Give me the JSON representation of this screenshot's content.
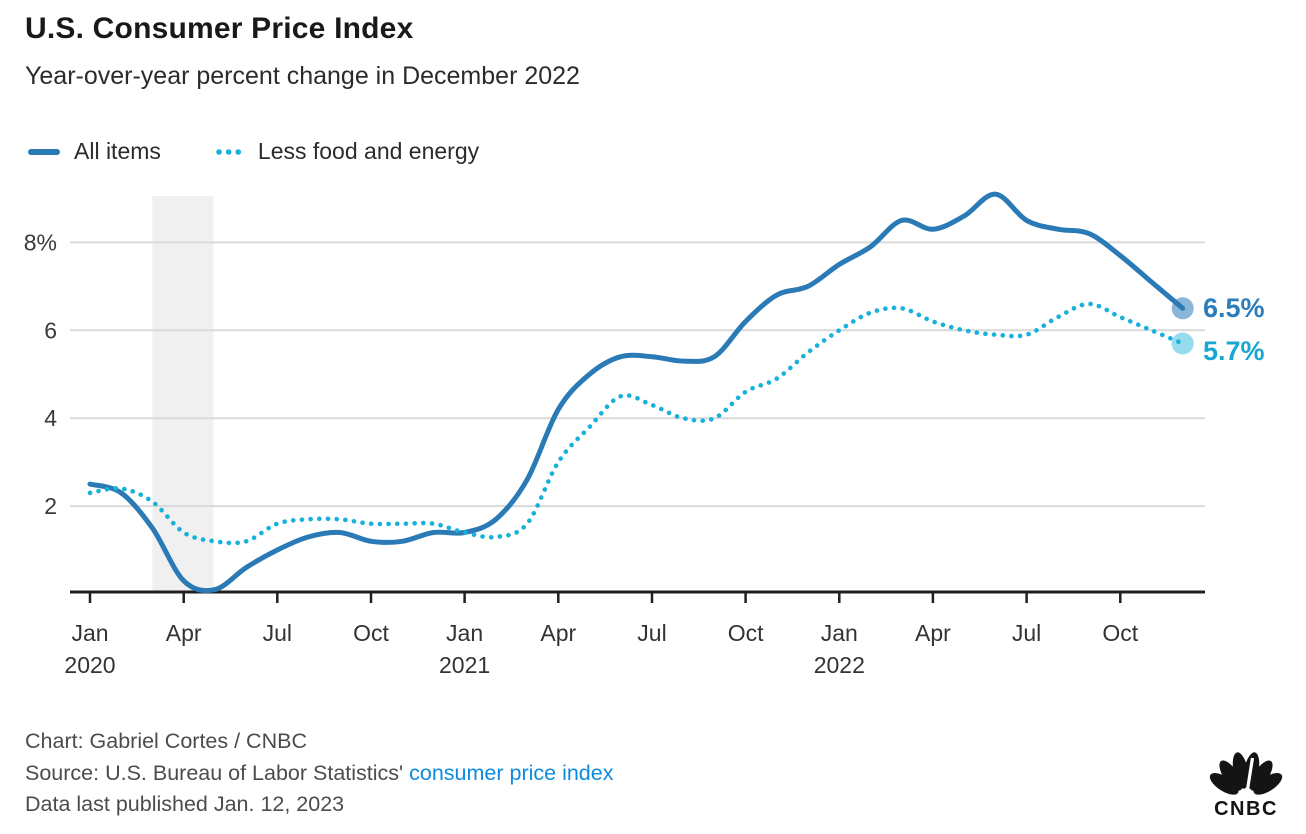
{
  "header": {
    "title": "U.S. Consumer Price Index",
    "subtitle": "Year-over-year percent change in December 2022"
  },
  "legend": [
    {
      "label": "All items",
      "style": "solid",
      "color": "#2a7ab6"
    },
    {
      "label": "Less food and energy",
      "style": "dotted",
      "color": "#16b2da"
    }
  ],
  "chart_data": {
    "type": "line",
    "title": "U.S. Consumer Price Index",
    "subtitle": "Year-over-year percent change in December 2022",
    "ylabel": "percent change year-over-year",
    "ylim": [
      0,
      9.05
    ],
    "grid": true,
    "legend_position": "top-left",
    "months": [
      "Jan 2020",
      "Feb 2020",
      "Mar 2020",
      "Apr 2020",
      "May 2020",
      "Jun 2020",
      "Jul 2020",
      "Aug 2020",
      "Sep 2020",
      "Oct 2020",
      "Nov 2020",
      "Dec 2020",
      "Jan 2021",
      "Feb 2021",
      "Mar 2021",
      "Apr 2021",
      "May 2021",
      "Jun 2021",
      "Jul 2021",
      "Aug 2021",
      "Sep 2021",
      "Oct 2021",
      "Nov 2021",
      "Dec 2021",
      "Jan 2022",
      "Feb 2022",
      "Mar 2022",
      "Apr 2022",
      "May 2022",
      "Jun 2022",
      "Jul 2022",
      "Aug 2022",
      "Sep 2022",
      "Oct 2022",
      "Nov 2022",
      "Dec 2022"
    ],
    "series": [
      {
        "name": "All items",
        "style": "solid",
        "color": "#2a7ab6",
        "label_color": "#2b7cba",
        "end_label": "6.5%",
        "values": [
          2.5,
          2.3,
          1.5,
          0.3,
          0.1,
          0.6,
          1.0,
          1.3,
          1.4,
          1.2,
          1.2,
          1.4,
          1.4,
          1.7,
          2.6,
          4.2,
          5.0,
          5.4,
          5.4,
          5.3,
          5.4,
          6.2,
          6.8,
          7.0,
          7.5,
          7.9,
          8.5,
          8.3,
          8.6,
          9.1,
          8.5,
          8.3,
          8.2,
          7.7,
          7.1,
          6.5
        ]
      },
      {
        "name": "Less food and energy",
        "style": "dotted",
        "color": "#16b2da",
        "label_color": "#18a7d0",
        "end_label": "5.7%",
        "values": [
          2.3,
          2.4,
          2.1,
          1.4,
          1.2,
          1.2,
          1.6,
          1.7,
          1.7,
          1.6,
          1.6,
          1.6,
          1.4,
          1.3,
          1.6,
          3.0,
          3.8,
          4.5,
          4.3,
          4.0,
          4.0,
          4.6,
          4.9,
          5.5,
          6.0,
          6.4,
          6.5,
          6.2,
          6.0,
          5.9,
          5.9,
          6.3,
          6.6,
          6.3,
          6.0,
          5.7
        ]
      }
    ],
    "x_ticks": [
      {
        "m": 0,
        "label": "Jan",
        "year": "2020"
      },
      {
        "m": 3,
        "label": "Apr"
      },
      {
        "m": 6,
        "label": "Jul"
      },
      {
        "m": 9,
        "label": "Oct"
      },
      {
        "m": 12,
        "label": "Jan",
        "year": "2021"
      },
      {
        "m": 15,
        "label": "Apr"
      },
      {
        "m": 18,
        "label": "Jul"
      },
      {
        "m": 21,
        "label": "Oct"
      },
      {
        "m": 24,
        "label": "Jan",
        "year": "2022"
      },
      {
        "m": 27,
        "label": "Apr"
      },
      {
        "m": 30,
        "label": "Jul"
      },
      {
        "m": 33,
        "label": "Oct"
      }
    ],
    "y_ticks": [
      {
        "v": 8,
        "label": "8%"
      },
      {
        "v": 6,
        "label": "6"
      },
      {
        "v": 4,
        "label": "4"
      },
      {
        "v": 2,
        "label": "2"
      }
    ],
    "recession_band": {
      "from_month": 2.0,
      "to_month": 3.95,
      "color": "#f0f0f0"
    },
    "colors": {
      "gridline": "#d9d9d9",
      "axis": "#1f1f1f",
      "tick_label": "#333333",
      "y_label": "#3a3a3a"
    }
  },
  "footer": {
    "credit": "Chart: Gabriel Cortes / CNBC",
    "source_prefix": "Source: U.S. Bureau of Labor Statistics' ",
    "source_link": "consumer price index",
    "published": "Data last published Jan. 12, 2023"
  },
  "logo": {
    "text": "CNBC"
  }
}
